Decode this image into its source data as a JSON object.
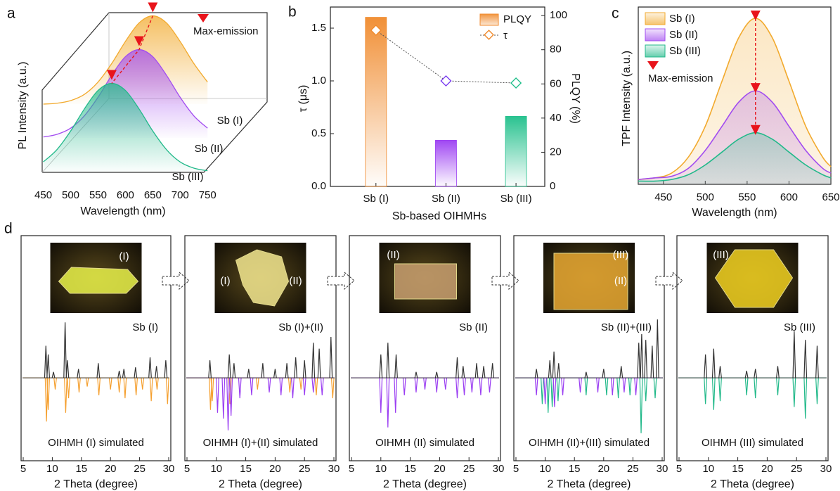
{
  "chart_data": [
    {
      "type": "waterfall",
      "panel": "a",
      "xlabel": "Wavelength (nm)",
      "ylabel": "PL Intensity (a.u.)",
      "annotation": "Max-emission",
      "x": [
        450,
        475,
        500,
        525,
        550,
        575,
        600,
        625,
        650,
        675,
        700,
        725,
        750
      ],
      "xlim": [
        430,
        760
      ],
      "xticks": [
        450,
        500,
        550,
        600,
        650,
        700,
        750
      ],
      "ylim": [
        0,
        1.1
      ],
      "series": [
        {
          "name": "Sb (I)",
          "color": "#f2aa2e",
          "values": [
            0.0,
            0.01,
            0.04,
            0.11,
            0.25,
            0.46,
            0.71,
            0.92,
            1.0,
            0.92,
            0.71,
            0.46,
            0.25
          ]
        },
        {
          "name": "Sb (II)",
          "color": "#a24cf0",
          "values": [
            0.01,
            0.04,
            0.11,
            0.25,
            0.46,
            0.71,
            0.92,
            1.0,
            0.92,
            0.71,
            0.46,
            0.25,
            0.11
          ]
        },
        {
          "name": "Sb (III)",
          "color": "#22b98a",
          "values": [
            0.11,
            0.25,
            0.46,
            0.71,
            0.92,
            1.0,
            0.92,
            0.71,
            0.46,
            0.25,
            0.11,
            0.04,
            0.01
          ]
        }
      ]
    },
    {
      "type": "bar",
      "panel": "b",
      "xlabel": "Sb-based OIHMHs",
      "ylabel": "τ (μs)",
      "y2label": "PLQY (%)",
      "categories": [
        "Sb (I)",
        "Sb (II)",
        "Sb (III)"
      ],
      "ylim": [
        0,
        1.7
      ],
      "yticks": [
        {
          "value": 0,
          "label": "0.0"
        },
        0.5,
        {
          "value": 1,
          "label": "1.0"
        },
        1.5
      ],
      "y2lim": [
        0,
        105
      ],
      "y2ticks": [
        0,
        20,
        40,
        60,
        80,
        100
      ],
      "legend": "upper right",
      "series": [
        {
          "name": "PLQY",
          "axis": "y2",
          "colors": [
            "#f08a2c",
            "#9b3ef2",
            "#1fbf8a"
          ],
          "values": [
            99,
            27,
            41
          ]
        },
        {
          "name": "τ",
          "color": "#555555",
          "colors": [
            "#f08a2c",
            "#7a3cf0",
            "#1fbf8a"
          ],
          "values": [
            1.48,
            1.0,
            0.98
          ]
        }
      ]
    },
    {
      "type": "line",
      "panel": "c",
      "xlabel": "Wavelength (nm)",
      "ylabel": "TPF Intensity (a.u.)",
      "annotation": "Max-emission",
      "legend": "upper left",
      "x": [
        420,
        440,
        460,
        480,
        500,
        520,
        540,
        560,
        580,
        600,
        620,
        640,
        650
      ],
      "xlim": [
        420,
        650
      ],
      "xticks": [
        450,
        500,
        550,
        600,
        650
      ],
      "ylim": [
        0,
        1.1
      ],
      "series": [
        {
          "name": "Sb (I)",
          "color": "#f2aa2e",
          "values": [
            0.03,
            0.04,
            0.07,
            0.17,
            0.36,
            0.64,
            0.91,
            1.03,
            0.91,
            0.64,
            0.36,
            0.17,
            0.11
          ]
        },
        {
          "name": "Sb (II)",
          "color": "#a24cf0",
          "values": [
            0.03,
            0.04,
            0.05,
            0.1,
            0.21,
            0.36,
            0.51,
            0.58,
            0.51,
            0.36,
            0.21,
            0.1,
            0.07
          ]
        },
        {
          "name": "Sb (III)",
          "color": "#22b98a",
          "values": [
            0.02,
            0.02,
            0.03,
            0.06,
            0.12,
            0.2,
            0.28,
            0.32,
            0.28,
            0.2,
            0.12,
            0.06,
            0.04
          ]
        }
      ]
    },
    {
      "type": "xrd",
      "panel": "d",
      "label": "Sb (I)",
      "sim_label": "OIHMH (I) simulated",
      "inset_labels": [
        "(I)"
      ],
      "xlabel": "2 Theta (degree)",
      "xlim": [
        5,
        30
      ],
      "xticks": [
        5,
        10,
        15,
        20,
        25,
        30
      ],
      "ylim": [
        -1,
        1.05
      ],
      "experimental": {
        "color": "#333333",
        "x": [
          8.9,
          9.3,
          10.2,
          12.2,
          12.6,
          14.5,
          17.9,
          21.5,
          22.3,
          24.3,
          26.8,
          27.9,
          29.5
        ],
        "values": [
          0.55,
          0.4,
          0.1,
          0.95,
          0.3,
          0.15,
          0.25,
          0.12,
          0.15,
          0.18,
          0.35,
          0.2,
          0.3
        ]
      },
      "simulated": [
        {
          "color": "#f5a030",
          "x": [
            9.0,
            9.3,
            10.5,
            12.3,
            12.8,
            14.6,
            16,
            18,
            20,
            21.5,
            22.5,
            24.4,
            25.5,
            27,
            28,
            29.8
          ],
          "values": [
            -0.75,
            -0.55,
            -0.2,
            -0.6,
            -0.35,
            -0.25,
            -0.15,
            -0.3,
            -0.2,
            -0.25,
            -0.35,
            -0.3,
            -0.2,
            -0.4,
            -0.2,
            -0.45
          ]
        }
      ]
    },
    {
      "type": "xrd",
      "label": "Sb (I)+(II)",
      "sim_label": "OIHMH (I)+(II) simulated",
      "inset_labels": [
        "(I)",
        "(II)"
      ],
      "xlabel": "2 Theta (degree)",
      "xlim": [
        5,
        30
      ],
      "xticks": [
        5,
        10,
        15,
        20,
        25,
        30
      ],
      "ylim": [
        -1,
        1.05
      ],
      "experimental": {
        "color": "#333333",
        "x": [
          8.9,
          12.2,
          13,
          15.5,
          17.9,
          20,
          22,
          23.5,
          25,
          26.5,
          27.5,
          29.5
        ],
        "values": [
          0.3,
          0.4,
          0.25,
          0.15,
          0.25,
          0.15,
          0.25,
          0.35,
          0.3,
          0.6,
          0.5,
          0.7
        ]
      },
      "simulated": [
        {
          "color": "#f5a030",
          "x": [
            9,
            9.3,
            12.3,
            17,
            22.5,
            24.4,
            27,
            29.8
          ],
          "values": [
            -0.55,
            -0.4,
            -0.45,
            -0.2,
            -0.25,
            -0.2,
            -0.3,
            -0.35
          ]
        },
        {
          "color": "#9b3ef2",
          "x": [
            10.2,
            11.2,
            12,
            12.5,
            14,
            16,
            19,
            21,
            23,
            25,
            26.5,
            28
          ],
          "values": [
            -0.6,
            -0.7,
            -0.9,
            -0.65,
            -0.35,
            -0.3,
            -0.25,
            -0.3,
            -0.35,
            -0.3,
            -0.25,
            -0.3
          ]
        }
      ]
    },
    {
      "type": "xrd",
      "label": "Sb (II)",
      "sim_label": "OIHMH (II) simulated",
      "inset_labels": [
        "(II)"
      ],
      "xlabel": "2 Theta (degree)",
      "xlim": [
        5,
        30
      ],
      "xticks": [
        5,
        10,
        15,
        20,
        25,
        30
      ],
      "ylim": [
        -1,
        1.05
      ],
      "experimental": {
        "color": "#333333",
        "x": [
          10,
          11.2,
          12.6,
          16,
          19.5,
          23,
          24,
          26.3,
          27.5,
          29
        ],
        "values": [
          0.4,
          0.6,
          0.4,
          0.1,
          0.1,
          0.35,
          0.2,
          0.25,
          0.2,
          0.25
        ]
      },
      "simulated": [
        {
          "color": "#9b3ef2",
          "x": [
            10,
            11.2,
            12.5,
            14,
            16,
            17.5,
            19.5,
            21,
            23,
            24.2,
            25.5,
            27,
            28.5
          ],
          "values": [
            -0.6,
            -0.85,
            -0.6,
            -0.3,
            -0.25,
            -0.2,
            -0.25,
            -0.2,
            -0.35,
            -0.3,
            -0.25,
            -0.3,
            -0.25
          ]
        }
      ]
    },
    {
      "type": "xrd",
      "label": "Sb (II)+(III)",
      "sim_label": "OIHMH (II)+(III) simulated",
      "inset_labels": [
        "(III)",
        "(II)"
      ],
      "xlabel": "2 Theta (degree)",
      "xlim": [
        5,
        30
      ],
      "xticks": [
        5,
        10,
        15,
        20,
        25,
        30
      ],
      "ylim": [
        -1,
        1.05
      ],
      "experimental": {
        "color": "#333333",
        "x": [
          8.5,
          10.8,
          11.5,
          12.3,
          17,
          20,
          23,
          26,
          26.5,
          27.2,
          28.3,
          29.2
        ],
        "values": [
          0.15,
          0.3,
          0.45,
          0.25,
          0.1,
          0.15,
          0.2,
          0.6,
          0.75,
          0.65,
          0.55,
          1.0
        ]
      },
      "simulated": [
        {
          "color": "#22b98a",
          "x": [
            9.5,
            10.5,
            11.2,
            12.2,
            17,
            20.5,
            22.5,
            24.5,
            26.4,
            27.2,
            28.8
          ],
          "values": [
            -0.45,
            -0.6,
            -0.5,
            -0.4,
            -0.3,
            -0.3,
            -0.35,
            -0.3,
            -0.95,
            -0.4,
            -0.35
          ]
        },
        {
          "color": "#9b3ef2",
          "x": [
            8.5,
            10,
            11.6,
            13,
            16,
            19,
            21.5,
            23.5,
            25.5
          ],
          "values": [
            -0.3,
            -0.45,
            -0.5,
            -0.3,
            -0.25,
            -0.25,
            -0.3,
            -0.25,
            -0.3
          ]
        }
      ]
    },
    {
      "type": "xrd",
      "label": "Sb (III)",
      "sim_label": "OIHMH (III) simulated",
      "inset_labels": [
        "(III)"
      ],
      "xlabel": "2 Theta (degree)",
      "xlim": [
        5,
        30
      ],
      "xticks": [
        5,
        10,
        15,
        20,
        25,
        30
      ],
      "ylim": [
        -1,
        1.05
      ],
      "experimental": {
        "color": "#333333",
        "x": [
          9.5,
          10.9,
          12,
          16.5,
          18,
          21.8,
          24.6,
          26.5,
          28.5
        ],
        "values": [
          0.4,
          0.5,
          0.2,
          0.12,
          0.15,
          0.2,
          0.8,
          0.65,
          0.55
        ]
      },
      "simulated": [
        {
          "color": "#22b98a",
          "x": [
            9.5,
            10.9,
            12,
            16.5,
            18,
            21.8,
            24.6,
            26.5,
            28.5
          ],
          "values": [
            -0.45,
            -0.55,
            -0.4,
            -0.3,
            -0.35,
            -0.3,
            -0.5,
            -0.7,
            -0.45
          ]
        }
      ]
    }
  ]
}
